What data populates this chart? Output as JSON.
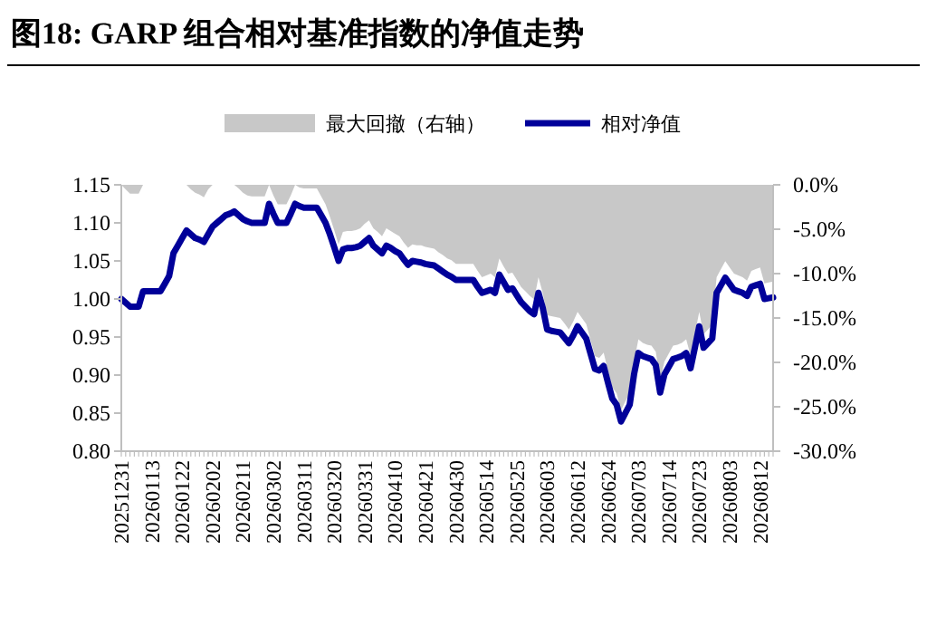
{
  "chart_data": {
    "type": "line",
    "title": "图18:  GARP 组合相对基准指数的净值走势",
    "categories": [
      "20251231",
      null,
      null,
      null,
      null,
      null,
      null,
      "20260113",
      null,
      null,
      null,
      null,
      null,
      null,
      "20260122",
      null,
      null,
      null,
      null,
      null,
      null,
      "20260202",
      null,
      null,
      null,
      null,
      null,
      null,
      "20260211",
      null,
      null,
      null,
      null,
      null,
      null,
      "20260302",
      null,
      null,
      null,
      null,
      null,
      null,
      "20260311",
      null,
      null,
      null,
      null,
      null,
      null,
      "20260320",
      null,
      null,
      null,
      null,
      null,
      null,
      "20260331",
      null,
      null,
      null,
      null,
      null,
      null,
      "20260410",
      null,
      null,
      null,
      null,
      null,
      null,
      "20260421",
      null,
      null,
      null,
      null,
      null,
      null,
      "20260430",
      null,
      null,
      null,
      null,
      null,
      null,
      "20260514",
      null,
      null,
      null,
      null,
      null,
      null,
      "20260525",
      null,
      null,
      null,
      null,
      null,
      null,
      "20260603",
      null,
      null,
      null,
      null,
      null,
      null,
      "20260612",
      null,
      null,
      null,
      null,
      null,
      null,
      "20260624",
      null,
      null,
      null,
      null,
      null,
      null,
      "20260703",
      null,
      null,
      null,
      null,
      null,
      null,
      "20260714",
      null,
      null,
      null,
      null,
      null,
      null,
      "20260723",
      null,
      null,
      null,
      null,
      null,
      null,
      "20260803",
      null,
      null,
      null,
      null,
      null,
      null,
      "20260812",
      null,
      null,
      null
    ],
    "ylim": [
      0.8,
      1.15
    ],
    "yticks": [
      {
        "value": 0.8,
        "label": "0.80"
      },
      {
        "value": 0.85,
        "label": "0.85"
      },
      {
        "value": 0.9,
        "label": "0.90"
      },
      {
        "value": 0.95,
        "label": "0.95"
      },
      {
        "value": 1.0,
        "label": "1.00"
      },
      {
        "value": 1.05,
        "label": "1.05"
      },
      {
        "value": 1.1,
        "label": "1.10"
      },
      {
        "value": 1.15,
        "label": "1.15"
      }
    ],
    "y2lim": [
      -30,
      0
    ],
    "y2ticks": [
      {
        "value": 0,
        "label": "0.0%"
      },
      {
        "value": -5,
        "label": "-5.0%"
      },
      {
        "value": -10,
        "label": "-10.0%"
      },
      {
        "value": -15,
        "label": "-15.0%"
      },
      {
        "value": -20,
        "label": "-20.0%"
      },
      {
        "value": -25,
        "label": "-25.0%"
      },
      {
        "value": -30,
        "label": "-30.0%"
      }
    ],
    "legend": "top",
    "series": [
      {
        "name": "最大回撤（右轴）",
        "type": "area",
        "axis": "y2",
        "color": "#c8c8c8",
        "values": [
          0,
          -0.5,
          -1.0,
          -1.0,
          -1.0,
          0,
          0,
          0,
          0,
          0,
          0,
          0,
          0,
          0,
          0,
          0,
          -0.5,
          -0.9,
          -1.1,
          -1.4,
          -0.5,
          0,
          0,
          0,
          0,
          0,
          0,
          -0.4,
          -0.9,
          -1.2,
          -1.3,
          -1.3,
          -1.3,
          -1.3,
          0,
          -1.2,
          -2.2,
          -2.2,
          -2.2,
          -1.2,
          0,
          -0.3,
          -0.4,
          -0.4,
          -0.4,
          -0.4,
          -1.3,
          -2.2,
          -3.6,
          -5.1,
          -6.7,
          -5.3,
          -5.2,
          -5.2,
          -5.1,
          -4.9,
          -4.4,
          -4.0,
          -4.9,
          -5.3,
          -5.8,
          -4.9,
          -5.2,
          -5.5,
          -5.8,
          -6.5,
          -7.1,
          -6.7,
          -6.8,
          -6.8,
          -7.0,
          -7.1,
          -7.2,
          -7.6,
          -7.9,
          -8.3,
          -8.5,
          -8.9,
          -8.9,
          -8.9,
          -8.9,
          -8.9,
          -9.7,
          -10.4,
          -10.2,
          -10.0,
          -10.4,
          -8.3,
          -9.2,
          -10.0,
          -9.9,
          -10.7,
          -11.5,
          -12.0,
          -12.5,
          -12.9,
          -10.4,
          -12.2,
          -14.7,
          -14.8,
          -14.9,
          -15.0,
          -15.6,
          -16.3,
          -15.4,
          -14.3,
          -15.0,
          -15.7,
          -17.5,
          -19.3,
          -19.5,
          -18.9,
          -20.9,
          -22.8,
          -23.5,
          -25.4,
          -24.4,
          -23.5,
          -19.9,
          -17.4,
          -17.8,
          -18.0,
          -18.1,
          -18.8,
          -22.0,
          -19.9,
          -19.0,
          -18.1,
          -18.0,
          -17.8,
          -17.4,
          -19.2,
          -16.8,
          -14.3,
          -16.8,
          -16.3,
          -15.7,
          -10.4,
          -9.5,
          -8.6,
          -9.3,
          -10.0,
          -10.2,
          -10.4,
          -10.8,
          -9.7,
          -9.5,
          -9.3,
          -11.1,
          -11.0,
          -10.9
        ]
      },
      {
        "name": "相对净值",
        "type": "line",
        "color": "#000099",
        "values": [
          1.0,
          0.995,
          0.99,
          0.99,
          0.99,
          1.01,
          1.01,
          1.01,
          1.01,
          1.01,
          1.02,
          1.03,
          1.06,
          1.07,
          1.08,
          1.09,
          1.085,
          1.08,
          1.078,
          1.075,
          1.085,
          1.095,
          1.1,
          1.105,
          1.11,
          1.112,
          1.115,
          1.11,
          1.105,
          1.102,
          1.1,
          1.1,
          1.1,
          1.1,
          1.125,
          1.112,
          1.1,
          1.1,
          1.1,
          1.112,
          1.125,
          1.122,
          1.12,
          1.12,
          1.12,
          1.12,
          1.11,
          1.1,
          1.085,
          1.068,
          1.05,
          1.065,
          1.067,
          1.067,
          1.068,
          1.07,
          1.075,
          1.08,
          1.07,
          1.065,
          1.06,
          1.07,
          1.067,
          1.063,
          1.06,
          1.052,
          1.045,
          1.05,
          1.049,
          1.048,
          1.046,
          1.045,
          1.044,
          1.04,
          1.036,
          1.032,
          1.029,
          1.025,
          1.025,
          1.025,
          1.025,
          1.025,
          1.016,
          1.008,
          1.01,
          1.012,
          1.008,
          1.032,
          1.022,
          1.012,
          1.014,
          1.005,
          0.996,
          0.99,
          0.984,
          0.98,
          1.008,
          0.988,
          0.96,
          0.958,
          0.957,
          0.956,
          0.949,
          0.942,
          0.952,
          0.964,
          0.956,
          0.948,
          0.928,
          0.908,
          0.906,
          0.912,
          0.89,
          0.869,
          0.861,
          0.839,
          0.85,
          0.861,
          0.901,
          0.929,
          0.925,
          0.923,
          0.921,
          0.913,
          0.877,
          0.901,
          0.911,
          0.921,
          0.923,
          0.925,
          0.929,
          0.909,
          0.936,
          0.964,
          0.936,
          0.942,
          0.948,
          1.008,
          1.018,
          1.028,
          1.02,
          1.012,
          1.01,
          1.008,
          1.004,
          1.016,
          1.018,
          1.02,
          1.0,
          1.001,
          1.002
        ]
      }
    ]
  }
}
